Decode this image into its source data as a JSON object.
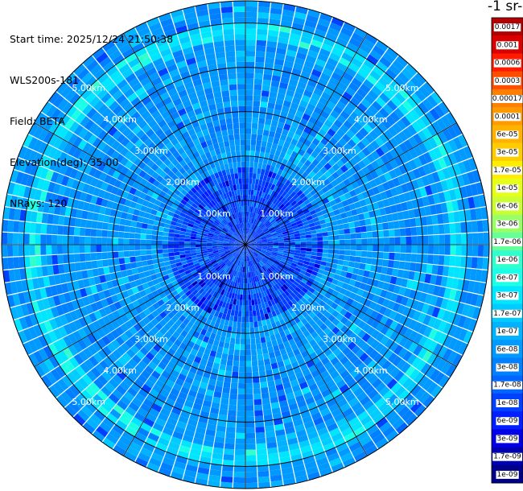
{
  "info": {
    "start_time": "Start time: 2025/12/24 21:50:38",
    "station": "WLS200s-181",
    "field": "Field: BETA",
    "elevation": "Elevation(deg): 35.00",
    "nrays": "NRays: 120"
  },
  "chart_data": {
    "type": "heatmap",
    "projection": "polar-ppi",
    "field": "BETA",
    "n_rays": 120,
    "max_range_km": 5.5,
    "range_rings_km": [
      1,
      2,
      3,
      4,
      5
    ],
    "range_ring_labels": [
      "1.00km",
      "2.00km",
      "3.00km",
      "4.00km",
      "5.00km"
    ],
    "spoke_angles_deg": [
      0,
      30,
      60,
      90,
      120,
      150,
      180,
      210,
      240,
      270,
      300,
      330
    ],
    "enhanced_band_km": [
      4.6,
      5.0
    ],
    "colorbar": {
      "title": "-1 sr-",
      "scale": "log",
      "range": [
        "1e-09",
        "0.0017"
      ],
      "tick_labels": [
        "0.0017",
        "0.001",
        "0.0006",
        "0.0003",
        "0.00017",
        "0.0001",
        "6e-05",
        "3e-05",
        "1.7e-05",
        "1e-05",
        "6e-06",
        "3e-06",
        "1.7e-06",
        "1e-06",
        "6e-07",
        "3e-07",
        "1.7e-07",
        "1e-07",
        "6e-08",
        "3e-08",
        "1.7e-08",
        "1e-08",
        "6e-09",
        "3e-09",
        "1.7e-09",
        "1e-09"
      ],
      "colors": [
        "#b30000",
        "#d90000",
        "#ff1a00",
        "#ff4d00",
        "#ff8000",
        "#ff9900",
        "#ffb300",
        "#ffcc00",
        "#ffee00",
        "#e6ff1a",
        "#ccff33",
        "#99ff66",
        "#66ff99",
        "#33ffcc",
        "#1affe6",
        "#00e6ff",
        "#00ccff",
        "#00b2ff",
        "#0099ff",
        "#0080ff",
        "#0066ff",
        "#0040ff",
        "#0020ff",
        "#0000e6",
        "#0000b3",
        "#00008b"
      ]
    }
  }
}
